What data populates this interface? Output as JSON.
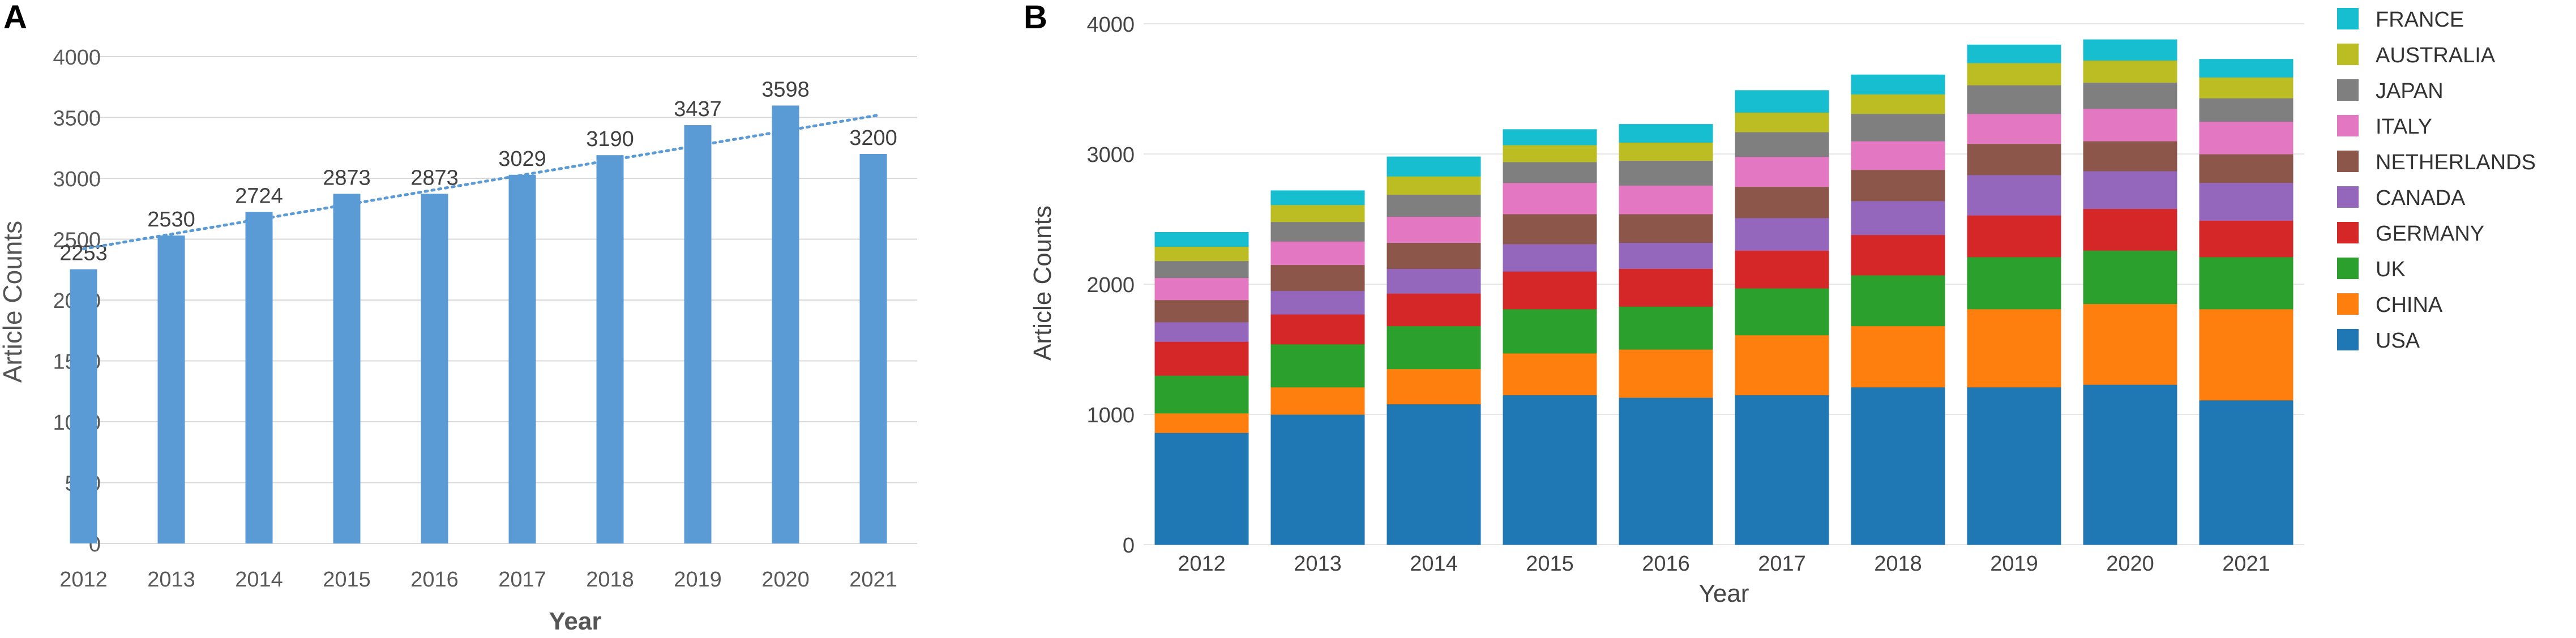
{
  "chart_data": [
    {
      "panel_label": "A",
      "type": "bar",
      "categories": [
        "2012",
        "2013",
        "2014",
        "2015",
        "2016",
        "2017",
        "2018",
        "2019",
        "2020",
        "2021"
      ],
      "values": [
        2253,
        2530,
        2724,
        2873,
        2873,
        3029,
        3190,
        3437,
        3598,
        3200
      ],
      "data_labels": [
        "2253",
        "2530",
        "2724",
        "2873",
        "2873",
        "3029",
        "3190",
        "3437",
        "3598",
        "3200"
      ],
      "title": "",
      "xlabel": "Year",
      "ylabel": "Article Counts",
      "ylim": [
        0,
        4000
      ],
      "yticks": [
        "0",
        "500",
        "1000",
        "1500",
        "2000",
        "2500",
        "3000",
        "3500",
        "4000"
      ],
      "trendline": {
        "type": "linear",
        "style": "dotted",
        "start": 2420,
        "end": 3520
      },
      "grid": true,
      "colors": {
        "bar": "#5b9bd5",
        "trend": "#5b9bd5"
      }
    },
    {
      "panel_label": "B",
      "type": "bar",
      "stacked": true,
      "categories": [
        "2012",
        "2013",
        "2014",
        "2015",
        "2016",
        "2017",
        "2018",
        "2019",
        "2020",
        "2021"
      ],
      "series": [
        {
          "name": "USA",
          "color": "#1f77b4",
          "values": [
            860,
            1000,
            1080,
            1150,
            1130,
            1150,
            1210,
            1210,
            1230,
            1110
          ]
        },
        {
          "name": "CHINA",
          "color": "#ff7f0e",
          "values": [
            150,
            210,
            270,
            320,
            370,
            460,
            470,
            600,
            620,
            700
          ]
        },
        {
          "name": "UK",
          "color": "#2ca02c",
          "values": [
            290,
            330,
            330,
            340,
            330,
            360,
            390,
            400,
            410,
            400
          ]
        },
        {
          "name": "GERMANY",
          "color": "#d62728",
          "values": [
            260,
            230,
            250,
            290,
            290,
            290,
            310,
            320,
            320,
            280
          ]
        },
        {
          "name": "CANADA",
          "color": "#9467bd",
          "values": [
            150,
            180,
            190,
            210,
            200,
            250,
            260,
            310,
            290,
            290
          ]
        },
        {
          "name": "NETHERLANDS",
          "color": "#8c564b",
          "values": [
            170,
            200,
            200,
            230,
            220,
            240,
            240,
            240,
            230,
            220
          ]
        },
        {
          "name": "ITALY",
          "color": "#e377c2",
          "values": [
            170,
            180,
            200,
            240,
            220,
            230,
            220,
            230,
            250,
            250
          ]
        },
        {
          "name": "JAPAN",
          "color": "#7f7f7f",
          "values": [
            130,
            150,
            170,
            160,
            190,
            190,
            210,
            220,
            200,
            180
          ]
        },
        {
          "name": "AUSTRALIA",
          "color": "#bcbd22",
          "values": [
            110,
            130,
            140,
            130,
            140,
            150,
            150,
            170,
            170,
            160
          ]
        },
        {
          "name": "FRANCE",
          "color": "#17becf",
          "values": [
            110,
            110,
            150,
            120,
            140,
            170,
            150,
            140,
            160,
            140
          ]
        }
      ],
      "title": "",
      "xlabel": "Year",
      "ylabel": "Article Counts",
      "ylim": [
        0,
        4000
      ],
      "yticks": [
        "0",
        "1000",
        "2000",
        "3000",
        "4000"
      ],
      "legend_order": [
        "FRANCE",
        "AUSTRALIA",
        "JAPAN",
        "ITALY",
        "NETHERLANDS",
        "CANADA",
        "GERMANY",
        "UK",
        "CHINA",
        "USA"
      ],
      "legend_position": "right",
      "grid": true
    }
  ]
}
